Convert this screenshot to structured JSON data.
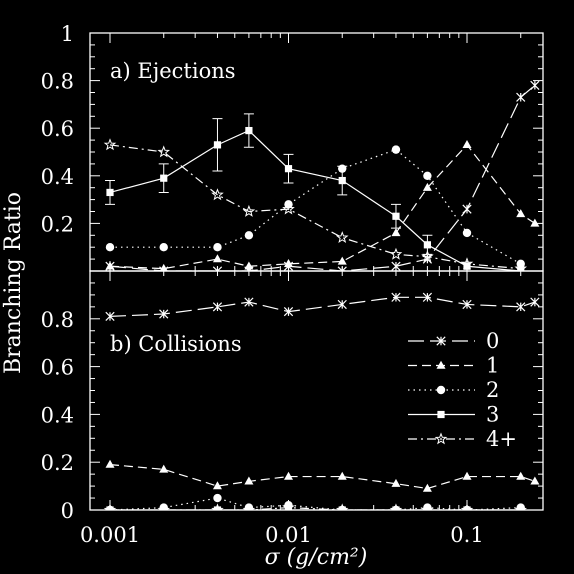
{
  "chart_data": [
    {
      "type": "line",
      "panel_label": "a) Ejections",
      "ylabel": "Branching Ratio",
      "ylim": [
        0,
        1
      ],
      "y_ticks": [
        "0.2",
        "0.4",
        "0.6",
        "0.8",
        "1"
      ],
      "x_scale": "log",
      "xlim": [
        0.001,
        0.24
      ],
      "series": [
        {
          "name": "0",
          "marker": "x",
          "dash": "long-dash",
          "x": [
            0.001,
            0.002,
            0.004,
            0.006,
            0.01,
            0.02,
            0.04,
            0.06,
            0.1,
            0.2,
            0.24
          ],
          "y": [
            0.02,
            0.0,
            0.0,
            0.0,
            0.02,
            0.0,
            0.02,
            0.05,
            0.26,
            0.73,
            0.78
          ]
        },
        {
          "name": "1",
          "marker": "triangle",
          "dash": "dash",
          "x": [
            0.001,
            0.002,
            0.004,
            0.006,
            0.01,
            0.02,
            0.04,
            0.06,
            0.1,
            0.2,
            0.24
          ],
          "y": [
            0.02,
            0.01,
            0.05,
            0.02,
            0.03,
            0.04,
            0.16,
            0.35,
            0.53,
            0.24,
            0.2
          ]
        },
        {
          "name": "2",
          "marker": "circle",
          "dash": "dot",
          "x": [
            0.001,
            0.002,
            0.004,
            0.006,
            0.01,
            0.02,
            0.04,
            0.06,
            0.1,
            0.2
          ],
          "y": [
            0.1,
            0.1,
            0.1,
            0.15,
            0.28,
            0.43,
            0.51,
            0.4,
            0.16,
            0.03
          ]
        },
        {
          "name": "3",
          "marker": "square",
          "dash": "solid",
          "x": [
            0.001,
            0.002,
            0.004,
            0.006,
            0.01,
            0.02,
            0.04,
            0.06,
            0.1,
            0.2
          ],
          "y": [
            0.33,
            0.39,
            0.53,
            0.59,
            0.43,
            0.38,
            0.23,
            0.11,
            0.02,
            0.0
          ],
          "err": [
            0.05,
            0.06,
            0.11,
            0.07,
            0.06,
            0.06,
            0.05,
            0.04,
            0.0,
            0.0
          ]
        },
        {
          "name": "4+",
          "marker": "star",
          "dash": "dash-dot",
          "x": [
            0.001,
            0.002,
            0.004,
            0.006,
            0.01,
            0.02,
            0.04,
            0.06,
            0.1,
            0.2
          ],
          "y": [
            0.53,
            0.5,
            0.32,
            0.25,
            0.26,
            0.14,
            0.07,
            0.06,
            0.03,
            0.01
          ]
        }
      ]
    },
    {
      "type": "line",
      "panel_label": "b) Collisions",
      "ylim": [
        0,
        1
      ],
      "y_ticks": [
        "0",
        "0.2",
        "0.4",
        "0.6",
        "0.8"
      ],
      "x_scale": "log",
      "xlim": [
        0.001,
        0.24
      ],
      "x_ticks": [
        "0.001",
        "0.01",
        "0.1"
      ],
      "xlabel": "σ (g/cm²)",
      "legend": "right",
      "series": [
        {
          "name": "0",
          "marker": "x",
          "dash": "long-dash",
          "x": [
            0.001,
            0.002,
            0.004,
            0.006,
            0.01,
            0.02,
            0.04,
            0.06,
            0.1,
            0.2,
            0.24
          ],
          "y": [
            0.81,
            0.82,
            0.85,
            0.87,
            0.83,
            0.86,
            0.89,
            0.89,
            0.86,
            0.85,
            0.87
          ]
        },
        {
          "name": "1",
          "marker": "triangle",
          "dash": "dash",
          "x": [
            0.001,
            0.002,
            0.004,
            0.006,
            0.01,
            0.02,
            0.04,
            0.06,
            0.1,
            0.2,
            0.24
          ],
          "y": [
            0.19,
            0.17,
            0.1,
            0.12,
            0.14,
            0.14,
            0.11,
            0.09,
            0.14,
            0.14,
            0.12
          ]
        },
        {
          "name": "2",
          "marker": "circle",
          "dash": "dot",
          "x": [
            0.001,
            0.002,
            0.004,
            0.006,
            0.01,
            0.02,
            0.04,
            0.06,
            0.1,
            0.2
          ],
          "y": [
            0.0,
            0.01,
            0.05,
            0.01,
            0.02,
            0.0,
            0.0,
            0.01,
            0.0,
            0.01
          ]
        },
        {
          "name": "3",
          "marker": "square",
          "dash": "solid",
          "x": [
            0.001,
            0.002,
            0.004,
            0.006,
            0.01,
            0.02,
            0.04,
            0.06,
            0.1,
            0.2
          ],
          "y": [
            0.0,
            0.0,
            0.0,
            0.0,
            0.0,
            0.0,
            0.0,
            0.0,
            0.0,
            0.0
          ]
        },
        {
          "name": "4+",
          "marker": "star",
          "dash": "dash-dot",
          "x": [
            0.001,
            0.002,
            0.004,
            0.006,
            0.01,
            0.02,
            0.04,
            0.06,
            0.1,
            0.2
          ],
          "y": [
            0.0,
            0.0,
            0.0,
            0.0,
            0.01,
            0.0,
            0.0,
            0.0,
            0.0,
            0.0
          ]
        }
      ]
    }
  ]
}
